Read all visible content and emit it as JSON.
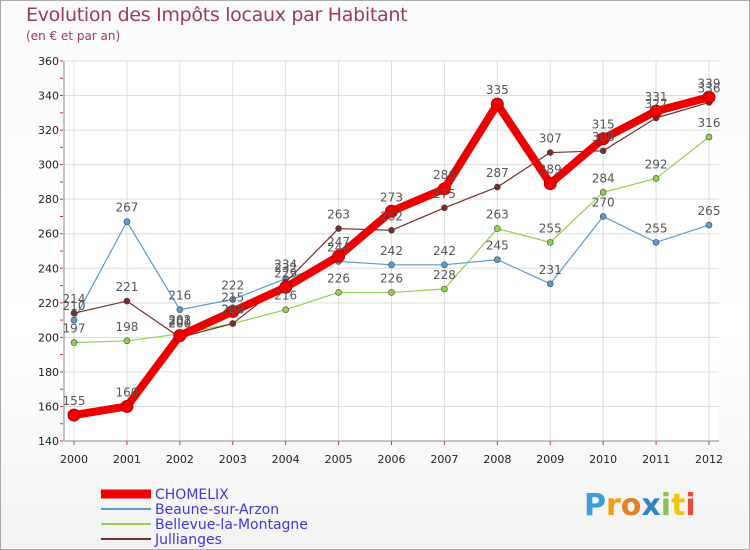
{
  "header": {
    "title": "Evolution des Impôts locaux par Habitant",
    "subtitle": "(en € et par an)"
  },
  "brand": {
    "letters": [
      "P",
      "r",
      "o",
      "x",
      "i",
      "t",
      "i"
    ],
    "colors": [
      "#3aa0d6",
      "#f39c12",
      "#e67e22",
      "#2e86c1",
      "#8bc34a",
      "#f1c40f",
      "#e74c3c"
    ]
  },
  "chart_data": {
    "type": "line",
    "title": "Evolution des Impôts locaux par Habitant",
    "subtitle": "(en € et par an)",
    "x": [
      "2000",
      "2001",
      "2002",
      "2003",
      "2004",
      "2005",
      "2006",
      "2007",
      "2008",
      "2009",
      "2010",
      "2011",
      "2012"
    ],
    "ylim": [
      140,
      360
    ],
    "yticks": [
      140,
      160,
      180,
      200,
      220,
      240,
      260,
      280,
      300,
      320,
      340,
      360
    ],
    "grid": true,
    "legend_position": "bottom-left",
    "series": [
      {
        "name": "CHOMELIX",
        "color": "#ee0000",
        "values": [
          155,
          160,
          201,
          215,
          229,
          247,
          273,
          286,
          335,
          289,
          315,
          331,
          339
        ]
      },
      {
        "name": "Beaune-sur-Arzon",
        "color": "#5b9bd5",
        "values": [
          210,
          267,
          216,
          222,
          234,
          244,
          242,
          242,
          245,
          231,
          270,
          255,
          265
        ]
      },
      {
        "name": "Bellevue-la-Montagne",
        "color": "#92d050",
        "values": [
          197,
          198,
          202,
          208,
          216,
          226,
          226,
          228,
          263,
          255,
          284,
          292,
          316
        ]
      },
      {
        "name": "Jullianges",
        "color": "#7a2b2b",
        "values": [
          214,
          221,
          200,
          208,
          232,
          263,
          262,
          275,
          287,
          307,
          308,
          327,
          336
        ]
      }
    ]
  }
}
